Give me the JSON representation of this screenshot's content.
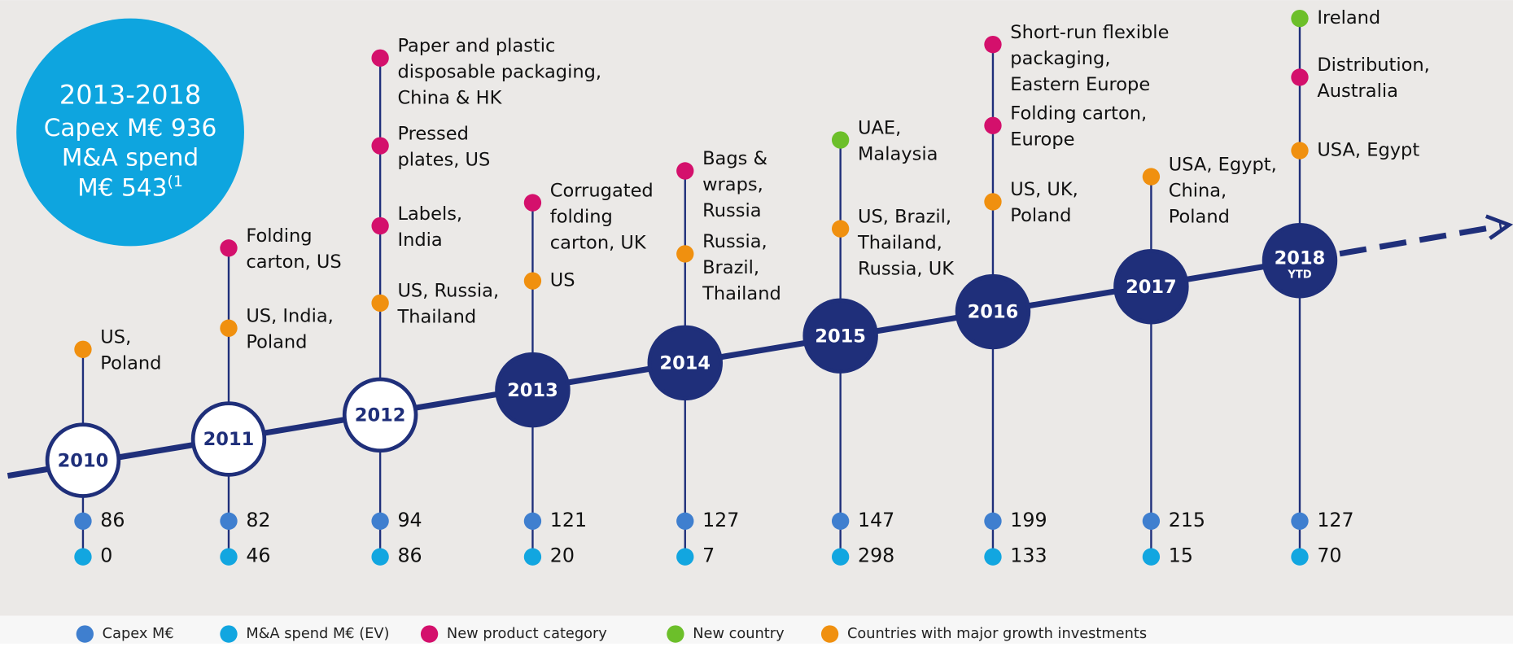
{
  "summary": {
    "lines": [
      "2013-2018",
      "Capex M€ 936",
      "M&A spend",
      "M€ 543"
    ],
    "note": "(1"
  },
  "years": [
    {
      "label": "2010",
      "capex": "86",
      "ma": "0",
      "events": [
        {
          "type": "growth",
          "lines": [
            "US,",
            "Poland"
          ]
        }
      ]
    },
    {
      "label": "2011",
      "capex": "82",
      "ma": "46",
      "events": [
        {
          "type": "product",
          "lines": [
            "Folding",
            "carton, US"
          ]
        },
        {
          "type": "growth",
          "lines": [
            "US, India,",
            "Poland"
          ]
        }
      ]
    },
    {
      "label": "2012",
      "capex": "94",
      "ma": "86",
      "events": [
        {
          "type": "product",
          "lines": [
            "Paper and plastic",
            "disposable packaging,",
            "China & HK"
          ]
        },
        {
          "type": "product",
          "lines": [
            "Pressed",
            "plates, US"
          ]
        },
        {
          "type": "product",
          "lines": [
            "Labels,",
            "India"
          ]
        },
        {
          "type": "growth",
          "lines": [
            "US, Russia,",
            "Thailand"
          ]
        }
      ]
    },
    {
      "label": "2013",
      "capex": "121",
      "ma": "20",
      "events": [
        {
          "type": "product",
          "lines": [
            "Corrugated",
            "folding",
            "carton, UK"
          ]
        },
        {
          "type": "growth",
          "lines": [
            "US"
          ]
        }
      ]
    },
    {
      "label": "2014",
      "capex": "127",
      "ma": "7",
      "events": [
        {
          "type": "product",
          "lines": [
            "Bags &",
            "wraps,",
            "Russia"
          ]
        },
        {
          "type": "growth",
          "lines": [
            "Russia,",
            "Brazil,",
            "Thailand"
          ]
        }
      ]
    },
    {
      "label": "2015",
      "capex": "147",
      "ma": "298",
      "events": [
        {
          "type": "country",
          "lines": [
            "UAE,",
            "Malaysia"
          ]
        },
        {
          "type": "growth",
          "lines": [
            "US, Brazil,",
            "Thailand,",
            "Russia, UK"
          ]
        }
      ]
    },
    {
      "label": "2016",
      "capex": "199",
      "ma": "133",
      "events": [
        {
          "type": "product",
          "lines": [
            "Short-run flexible",
            "packaging,",
            "Eastern Europe"
          ]
        },
        {
          "type": "product",
          "lines": [
            "Folding carton,",
            "Europe"
          ]
        },
        {
          "type": "growth",
          "lines": [
            "US, UK,",
            "Poland"
          ]
        }
      ]
    },
    {
      "label": "2017",
      "capex": "215",
      "ma": "15",
      "events": [
        {
          "type": "growth",
          "lines": [
            "USA, Egypt,",
            "China,",
            "Poland"
          ]
        }
      ]
    },
    {
      "label": "2018",
      "sublabel": "YTD",
      "capex": "127",
      "ma": "70",
      "events": [
        {
          "type": "country",
          "lines": [
            "Ireland"
          ]
        },
        {
          "type": "product",
          "lines": [
            "Distribution,",
            "Australia"
          ]
        },
        {
          "type": "growth",
          "lines": [
            "USA, Egypt"
          ]
        }
      ]
    }
  ],
  "legend": [
    {
      "key": "capex",
      "label": "Capex M€"
    },
    {
      "key": "ma",
      "label": "M&A spend M€ (EV)"
    },
    {
      "key": "product",
      "label": "New product category"
    },
    {
      "key": "country",
      "label": "New country"
    },
    {
      "key": "growth",
      "label": "Countries with major growth investments"
    }
  ]
}
